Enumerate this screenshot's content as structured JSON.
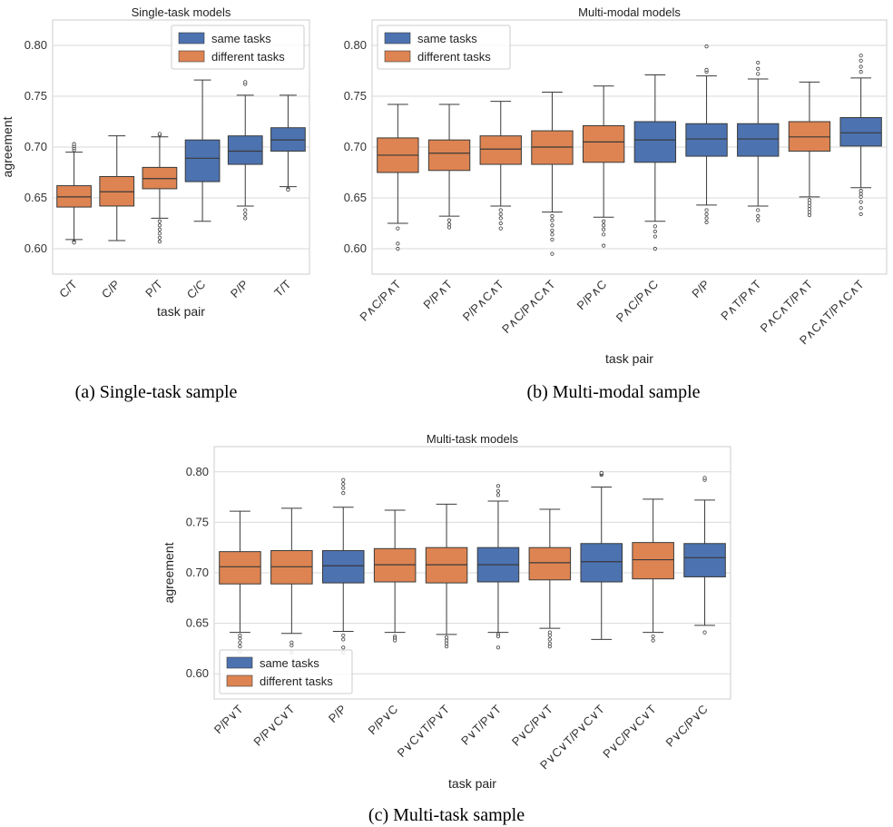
{
  "colors": {
    "same": "#4c72b0",
    "different": "#dd8452",
    "grid": "#d9d9d9",
    "frame": "#cccccc",
    "line": "#3a3a3a"
  },
  "legend": {
    "same_label": "same tasks",
    "different_label": "different tasks"
  },
  "captions": {
    "a": "(a) Single-task sample",
    "b": "(b) Multi-modal sample",
    "c": "(c) Multi-task sample"
  },
  "chart_data": [
    {
      "id": "a",
      "type": "box",
      "title": "Single-task models",
      "xlabel": "task pair",
      "ylabel": "agreement",
      "ylim": [
        0.575,
        0.825
      ],
      "yticks": [
        0.6,
        0.65,
        0.7,
        0.75,
        0.8
      ],
      "grid": true,
      "legend_position": "top-right",
      "categories": [
        "C/T",
        "C/P",
        "P/T",
        "C/C",
        "P/P",
        "T/T"
      ],
      "groups": [
        "different",
        "different",
        "different",
        "same",
        "same",
        "same"
      ],
      "boxes": [
        {
          "whislo": 0.609,
          "q1": 0.641,
          "med": 0.651,
          "q3": 0.662,
          "whishi": 0.695,
          "fliers": [
            0.607,
            0.606,
            0.697,
            0.699,
            0.701,
            0.703
          ]
        },
        {
          "whislo": 0.608,
          "q1": 0.642,
          "med": 0.656,
          "q3": 0.671,
          "whishi": 0.711,
          "fliers": []
        },
        {
          "whislo": 0.63,
          "q1": 0.659,
          "med": 0.669,
          "q3": 0.68,
          "whishi": 0.71,
          "fliers": [
            0.627,
            0.623,
            0.619,
            0.615,
            0.611,
            0.607,
            0.712,
            0.713
          ]
        },
        {
          "whislo": 0.627,
          "q1": 0.666,
          "med": 0.689,
          "q3": 0.707,
          "whishi": 0.766,
          "fliers": []
        },
        {
          "whislo": 0.642,
          "q1": 0.683,
          "med": 0.696,
          "q3": 0.711,
          "whishi": 0.751,
          "fliers": [
            0.638,
            0.634,
            0.63,
            0.762,
            0.764
          ]
        },
        {
          "whislo": 0.661,
          "q1": 0.696,
          "med": 0.707,
          "q3": 0.719,
          "whishi": 0.751,
          "fliers": [
            0.659,
            0.658
          ]
        }
      ]
    },
    {
      "id": "b",
      "type": "box",
      "title": "Multi-modal models",
      "xlabel": "task pair",
      "ylabel": "",
      "ylim": [
        0.575,
        0.825
      ],
      "yticks": [
        0.6,
        0.65,
        0.7,
        0.75,
        0.8
      ],
      "grid": true,
      "legend_position": "top-left",
      "categories": [
        "P∧C/P∧T",
        "P/P∧T",
        "P/P∧C∧T",
        "P∧C/P∧C∧T",
        "P/P∧C",
        "P∧C/P∧C",
        "P/P",
        "P∧T/P∧T",
        "P∧C∧T/P∧T",
        "P∧C∧T/P∧C∧T"
      ],
      "groups": [
        "different",
        "different",
        "different",
        "different",
        "different",
        "same",
        "same",
        "same",
        "different",
        "same"
      ],
      "boxes": [
        {
          "whislo": 0.625,
          "q1": 0.675,
          "med": 0.692,
          "q3": 0.709,
          "whishi": 0.742,
          "fliers": [
            0.62,
            0.605,
            0.6
          ]
        },
        {
          "whislo": 0.632,
          "q1": 0.677,
          "med": 0.694,
          "q3": 0.707,
          "whishi": 0.742,
          "fliers": [
            0.628,
            0.624,
            0.621
          ]
        },
        {
          "whislo": 0.642,
          "q1": 0.683,
          "med": 0.698,
          "q3": 0.711,
          "whishi": 0.745,
          "fliers": [
            0.638,
            0.634,
            0.63,
            0.625,
            0.62
          ]
        },
        {
          "whislo": 0.636,
          "q1": 0.683,
          "med": 0.7,
          "q3": 0.716,
          "whishi": 0.754,
          "fliers": [
            0.632,
            0.628,
            0.623,
            0.618,
            0.614,
            0.609,
            0.595
          ]
        },
        {
          "whislo": 0.631,
          "q1": 0.685,
          "med": 0.705,
          "q3": 0.721,
          "whishi": 0.76,
          "fliers": [
            0.627,
            0.623,
            0.619,
            0.614,
            0.603
          ]
        },
        {
          "whislo": 0.627,
          "q1": 0.685,
          "med": 0.707,
          "q3": 0.725,
          "whishi": 0.771,
          "fliers": [
            0.622,
            0.617,
            0.612,
            0.6
          ]
        },
        {
          "whislo": 0.643,
          "q1": 0.691,
          "med": 0.708,
          "q3": 0.723,
          "whishi": 0.77,
          "fliers": [
            0.638,
            0.634,
            0.63,
            0.626,
            0.774,
            0.776,
            0.799
          ]
        },
        {
          "whislo": 0.642,
          "q1": 0.691,
          "med": 0.708,
          "q3": 0.723,
          "whishi": 0.767,
          "fliers": [
            0.638,
            0.632,
            0.628,
            0.772,
            0.777,
            0.783
          ]
        },
        {
          "whislo": 0.651,
          "q1": 0.696,
          "med": 0.71,
          "q3": 0.725,
          "whishi": 0.764,
          "fliers": [
            0.648,
            0.645,
            0.642,
            0.639,
            0.636,
            0.633
          ]
        },
        {
          "whislo": 0.66,
          "q1": 0.701,
          "med": 0.714,
          "q3": 0.729,
          "whishi": 0.768,
          "fliers": [
            0.657,
            0.654,
            0.651,
            0.646,
            0.64,
            0.634,
            0.774,
            0.779,
            0.785,
            0.79
          ]
        }
      ]
    },
    {
      "id": "c",
      "type": "box",
      "title": "Multi-task models",
      "xlabel": "task pair",
      "ylabel": "agreement",
      "ylim": [
        0.575,
        0.825
      ],
      "yticks": [
        0.6,
        0.65,
        0.7,
        0.75,
        0.8
      ],
      "grid": true,
      "legend_position": "bottom-left",
      "categories": [
        "P/P∨T",
        "P/P∨C∨T",
        "P/P",
        "P/P∨C",
        "P∨C∨T/P∨T",
        "P∨T/P∨T",
        "P∨C/P∨T",
        "P∨C∨T/P∨C∨T",
        "P∨C/P∨C∨T",
        "P∨C/P∨C"
      ],
      "groups": [
        "different",
        "different",
        "same",
        "different",
        "different",
        "same",
        "different",
        "same",
        "different",
        "same"
      ],
      "boxes": [
        {
          "whislo": 0.641,
          "q1": 0.689,
          "med": 0.706,
          "q3": 0.721,
          "whishi": 0.761,
          "fliers": [
            0.638,
            0.635,
            0.631,
            0.627,
            0.622
          ]
        },
        {
          "whislo": 0.64,
          "q1": 0.689,
          "med": 0.706,
          "q3": 0.722,
          "whishi": 0.764,
          "fliers": [
            0.631,
            0.628,
            0.621
          ]
        },
        {
          "whislo": 0.642,
          "q1": 0.69,
          "med": 0.707,
          "q3": 0.722,
          "whishi": 0.765,
          "fliers": [
            0.638,
            0.634,
            0.626,
            0.621,
            0.779,
            0.784,
            0.788,
            0.792
          ]
        },
        {
          "whislo": 0.641,
          "q1": 0.691,
          "med": 0.708,
          "q3": 0.724,
          "whishi": 0.762,
          "fliers": [
            0.637,
            0.635,
            0.633
          ]
        },
        {
          "whislo": 0.639,
          "q1": 0.69,
          "med": 0.708,
          "q3": 0.725,
          "whishi": 0.768,
          "fliers": [
            0.636,
            0.633,
            0.63,
            0.627
          ]
        },
        {
          "whislo": 0.641,
          "q1": 0.691,
          "med": 0.708,
          "q3": 0.725,
          "whishi": 0.771,
          "fliers": [
            0.639,
            0.637,
            0.626,
            0.777,
            0.781,
            0.786
          ]
        },
        {
          "whislo": 0.645,
          "q1": 0.693,
          "med": 0.71,
          "q3": 0.725,
          "whishi": 0.763,
          "fliers": [
            0.641,
            0.638,
            0.634,
            0.63,
            0.627
          ]
        },
        {
          "whislo": 0.634,
          "q1": 0.691,
          "med": 0.711,
          "q3": 0.729,
          "whishi": 0.785,
          "fliers": [
            0.797,
            0.798,
            0.799
          ]
        },
        {
          "whislo": 0.641,
          "q1": 0.694,
          "med": 0.713,
          "q3": 0.73,
          "whishi": 0.773,
          "fliers": [
            0.637,
            0.633
          ]
        },
        {
          "whislo": 0.648,
          "q1": 0.696,
          "med": 0.715,
          "q3": 0.729,
          "whishi": 0.772,
          "fliers": [
            0.641,
            0.792,
            0.794
          ]
        }
      ]
    }
  ]
}
